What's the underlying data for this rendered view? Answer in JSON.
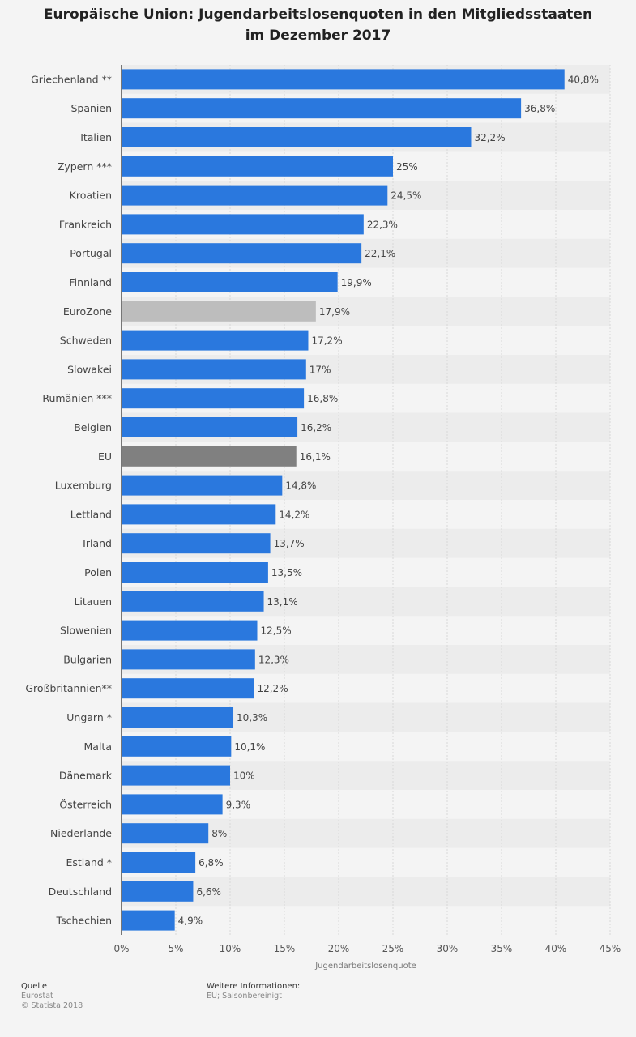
{
  "title": {
    "line1": "Europäische Union: Jugendarbeitslosenquoten in den Mitgliedsstaaten",
    "line2": "im Dezember 2017"
  },
  "footer": {
    "source_label": "Quelle",
    "source": "Eurostat",
    "copyright": "© Statista 2018",
    "info_label": "Weitere Informationen:",
    "info": "EU; Saisonbereinigt"
  },
  "colors": {
    "bar": "#2a78de",
    "eurozone": "#bdbdbd",
    "eu": "#808080",
    "stripe": "#ececec",
    "grid": "#d8d8d8",
    "axis": "#222222"
  },
  "chart_data": {
    "type": "bar",
    "orientation": "horizontal",
    "xlabel": "Jugendarbeitslosenquote",
    "xlim": [
      0,
      45
    ],
    "xticks": [
      0,
      5,
      10,
      15,
      20,
      25,
      30,
      35,
      40,
      45
    ],
    "xtick_labels": [
      "0%",
      "5%",
      "10%",
      "15%",
      "20%",
      "25%",
      "30%",
      "35%",
      "40%",
      "45%"
    ],
    "grid": true,
    "categories": [
      "Griechenland **",
      "Spanien",
      "Italien",
      "Zypern ***",
      "Kroatien",
      "Frankreich",
      "Portugal",
      "Finnland",
      "EuroZone",
      "Schweden",
      "Slowakei",
      "Rumänien ***",
      "Belgien",
      "EU",
      "Luxemburg",
      "Lettland",
      "Irland",
      "Polen",
      "Litauen",
      "Slowenien",
      "Bulgarien",
      "Großbritannien**",
      "Ungarn *",
      "Malta",
      "Dänemark",
      "Österreich",
      "Niederlande",
      "Estland *",
      "Deutschland",
      "Tschechien"
    ],
    "values": [
      40.8,
      36.8,
      32.2,
      25,
      24.5,
      22.3,
      22.1,
      19.9,
      17.9,
      17.2,
      17,
      16.8,
      16.2,
      16.1,
      14.8,
      14.2,
      13.7,
      13.5,
      13.1,
      12.5,
      12.3,
      12.2,
      10.3,
      10.1,
      10,
      9.3,
      8,
      6.8,
      6.6,
      4.9
    ],
    "value_labels": [
      "40,8%",
      "36,8%",
      "32,2%",
      "25%",
      "24,5%",
      "22,3%",
      "22,1%",
      "19,9%",
      "17,9%",
      "17,2%",
      "17%",
      "16,8%",
      "16,2%",
      "16,1%",
      "14,8%",
      "14,2%",
      "13,7%",
      "13,5%",
      "13,1%",
      "12,5%",
      "12,3%",
      "12,2%",
      "10,3%",
      "10,1%",
      "10%",
      "9,3%",
      "8%",
      "6,8%",
      "6,6%",
      "4,9%"
    ]
  }
}
